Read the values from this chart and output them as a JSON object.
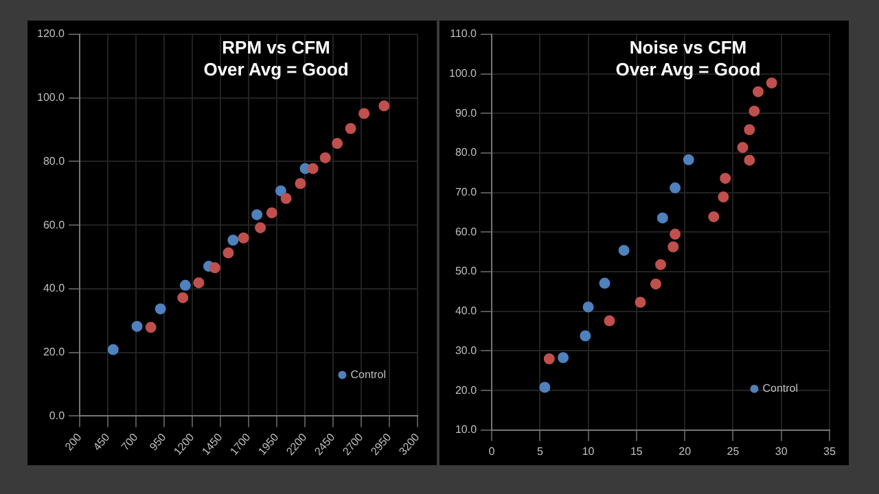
{
  "chart_data": [
    {
      "type": "scatter",
      "title": "RPM vs CFM",
      "subtitle": "Over Avg = Good",
      "marker": "circle",
      "grid": true,
      "legend": "bottom right",
      "xlim": [
        200,
        3200
      ],
      "xticks": [
        200,
        450,
        700,
        950,
        1200,
        1450,
        1700,
        1950,
        2200,
        2450,
        2700,
        2950,
        3200
      ],
      "ylim": [
        0,
        120
      ],
      "yticks": [
        {
          "value": 0,
          "label": "0.0"
        },
        {
          "value": 20,
          "label": "20.0"
        },
        {
          "value": 40,
          "label": "40.0"
        },
        {
          "value": 60,
          "label": "60.0"
        },
        {
          "value": 80,
          "label": "80.0"
        },
        {
          "value": 100,
          "label": "100.0"
        },
        {
          "value": 120,
          "label": "120.0"
        }
      ],
      "series": [
        {
          "color": "#c0504d",
          "x": [
            832,
            1116,
            1257,
            1401,
            1520,
            1655,
            1804,
            1906,
            2033,
            2160,
            2271,
            2381,
            2487,
            2606,
            2725,
            2903
          ],
          "values": [
            27.9,
            37.2,
            41.9,
            46.6,
            51.3,
            56.0,
            59.2,
            63.9,
            68.4,
            73.1,
            77.8,
            81.2,
            85.7,
            90.4,
            95.1,
            97.5
          ]
        },
        {
          "name": "Control",
          "color": "#4f81bd",
          "x": [
            497,
            709,
            917,
            1138,
            1346,
            1562,
            1774,
            1986,
            2203
          ],
          "values": [
            20.9,
            28.2,
            33.7,
            41.1,
            47.1,
            55.3,
            63.3,
            70.8,
            77.8
          ]
        }
      ]
    },
    {
      "type": "scatter",
      "title": "Noise vs CFM",
      "subtitle": "Over Avg = Good",
      "marker": "circle",
      "grid": true,
      "legend": "bottom right",
      "xlim": [
        0,
        35
      ],
      "xticks": [
        0,
        5,
        10,
        15,
        20,
        25,
        30,
        35
      ],
      "ylim": [
        10,
        110
      ],
      "yticks": [
        {
          "value": 10,
          "label": "10.0"
        },
        {
          "value": 20,
          "label": "20.0"
        },
        {
          "value": 30,
          "label": "30.0"
        },
        {
          "value": 40,
          "label": "40.0"
        },
        {
          "value": 50,
          "label": "50.0"
        },
        {
          "value": 60,
          "label": "60.0"
        },
        {
          "value": 70,
          "label": "70.0"
        },
        {
          "value": 80,
          "label": "80.0"
        },
        {
          "value": 90,
          "label": "90.0"
        },
        {
          "value": 100,
          "label": "100.0"
        },
        {
          "value": 110,
          "label": "110.0"
        }
      ],
      "series": [
        {
          "color": "#c0504d",
          "x": [
            5.96,
            12.2,
            15.4,
            17.0,
            17.5,
            18.8,
            19.0,
            23.0,
            24.0,
            24.2,
            26.7,
            26.0,
            26.7,
            27.2,
            27.6,
            29.0
          ],
          "values": [
            28.0,
            37.6,
            42.3,
            46.9,
            51.8,
            56.3,
            59.5,
            63.9,
            68.9,
            73.6,
            78.2,
            81.4,
            85.9,
            90.6,
            95.5,
            97.7
          ]
        },
        {
          "name": "Control",
          "color": "#4f81bd",
          "x": [
            5.5,
            7.4,
            9.7,
            10.0,
            11.7,
            13.7,
            17.7,
            19.0,
            20.4
          ],
          "values": [
            20.8,
            28.3,
            33.8,
            41.1,
            47.1,
            55.4,
            63.6,
            71.2,
            78.3
          ]
        }
      ]
    }
  ]
}
